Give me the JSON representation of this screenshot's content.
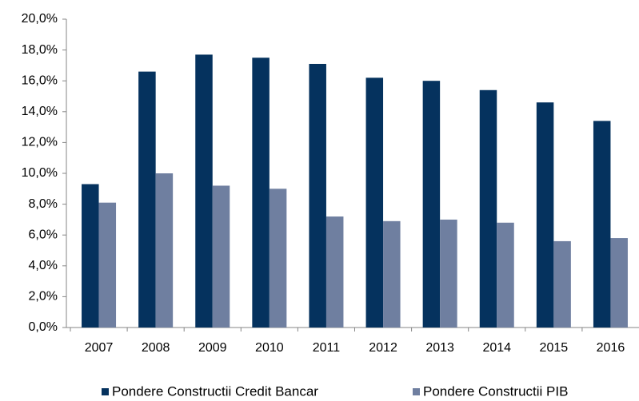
{
  "chart_data": {
    "type": "bar",
    "categories": [
      "2007",
      "2008",
      "2009",
      "2010",
      "2011",
      "2012",
      "2013",
      "2014",
      "2015",
      "2016"
    ],
    "series": [
      {
        "name": "Pondere Constructii Credit Bancar",
        "color": "#05325e",
        "values": [
          9.3,
          16.6,
          17.7,
          17.5,
          17.1,
          16.2,
          16.0,
          15.4,
          14.6,
          13.4
        ]
      },
      {
        "name": "Pondere Constructii PIB",
        "color": "#6f7fa0",
        "values": [
          8.1,
          10.0,
          9.2,
          9.0,
          7.2,
          6.9,
          7.0,
          6.8,
          5.6,
          5.8
        ]
      }
    ],
    "ylim": [
      0,
      20
    ],
    "yticks": [
      {
        "value": 0,
        "label": "0,0%"
      },
      {
        "value": 2,
        "label": "2,0%"
      },
      {
        "value": 4,
        "label": "4,0%"
      },
      {
        "value": 6,
        "label": "6,0%"
      },
      {
        "value": 8,
        "label": "8,0%"
      },
      {
        "value": 10,
        "label": "10,0%"
      },
      {
        "value": 12,
        "label": "12,0%"
      },
      {
        "value": 14,
        "label": "14,0%"
      },
      {
        "value": 16,
        "label": "16,0%"
      },
      {
        "value": 18,
        "label": "18,0%"
      },
      {
        "value": 20,
        "label": "20,0%"
      }
    ],
    "grid": false,
    "legend": "bottom"
  }
}
